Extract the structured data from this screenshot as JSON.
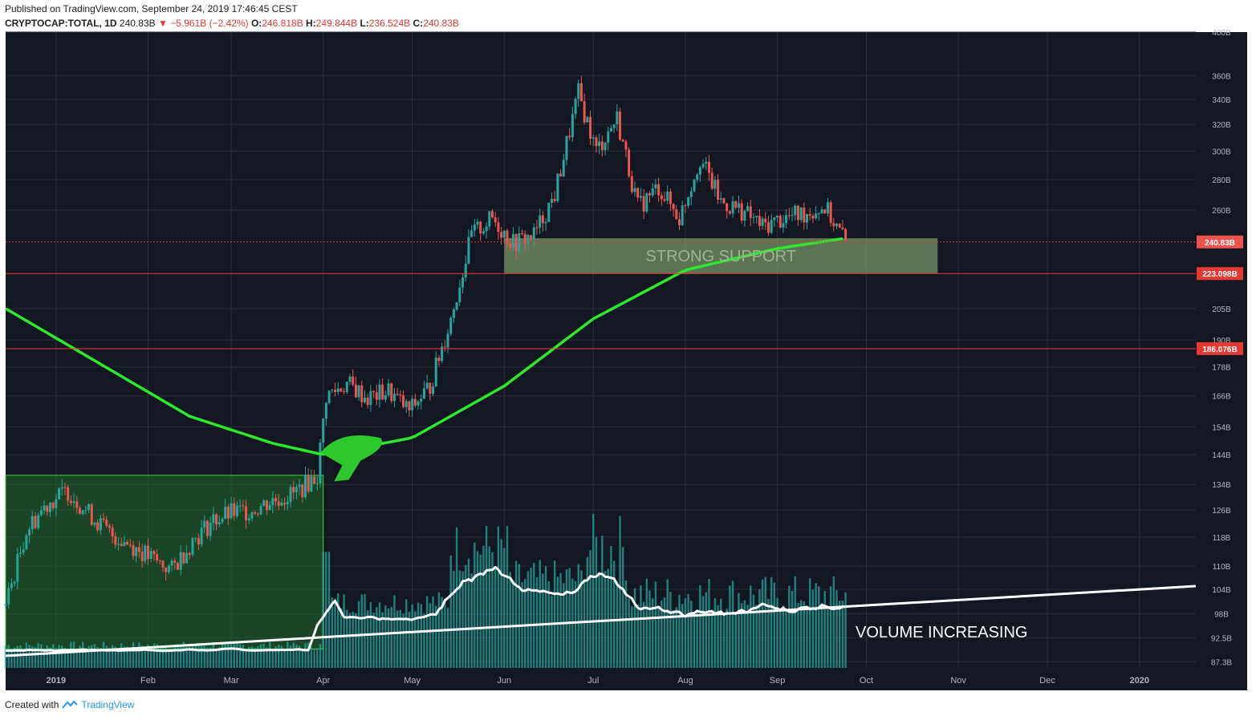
{
  "header": {
    "published": "Published on TradingView.com, September 24, 2019 17:46:45 CEST",
    "symbol": "CRYPTOCAP:TOTAL, 1D",
    "last": "240.83B",
    "change": "−5.961B (−2.42%)",
    "o_label": "O:",
    "o_value": "246.818B",
    "h_label": "H:",
    "h_value": "249.844B",
    "l_label": "L:",
    "l_value": "236.524B",
    "c_label": "C:",
    "c_value": "240.83B"
  },
  "footer": {
    "created": "Created with",
    "brand": "TradingView"
  },
  "colors": {
    "background": "#131722",
    "grid": "#2a2e39",
    "up": "#26a69a",
    "down": "#ef5350",
    "ma": "#2ee82e",
    "support_box": "#7e9c6a",
    "accum_box": "#1f6b2a",
    "hline": "#e53935",
    "volume": "#26a69a",
    "volume_line": "#ffffff"
  },
  "chart_data": {
    "type": "candlestick",
    "title": "",
    "x_ticks": [
      "2019",
      "Feb",
      "Mar",
      "Apr",
      "May",
      "Jun",
      "Jul",
      "Aug",
      "Sep",
      "Oct",
      "Nov",
      "Dec",
      "2020"
    ],
    "y_ticks": [
      "400B",
      "360B",
      "340B",
      "320B",
      "300B",
      "280B",
      "260B",
      "240.83B",
      "223.098B",
      "205B",
      "190B",
      "186.076B",
      "178B",
      "166B",
      "154B",
      "144B",
      "134B",
      "126B",
      "118B",
      "110B",
      "104B",
      "98B",
      "92.5B",
      "87.3B"
    ],
    "log_scale": true,
    "y_range": [
      86,
      400
    ],
    "last_price_label": "240.83B",
    "horizontal_levels": [
      {
        "value": 240.83,
        "label": "240.83B",
        "style": "dotted"
      },
      {
        "value": 223.098,
        "label": "223.098B",
        "style": "solid"
      },
      {
        "value": 186.076,
        "label": "186.076B",
        "style": "solid"
      }
    ],
    "price_path": [
      [
        "2018-12-15",
        100
      ],
      [
        "2018-12-22",
        120
      ],
      [
        "2018-12-29",
        128
      ],
      [
        "2019-01-05",
        132
      ],
      [
        "2019-01-12",
        125
      ],
      [
        "2019-01-19",
        119
      ],
      [
        "2019-01-26",
        116
      ],
      [
        "2019-02-02",
        112
      ],
      [
        "2019-02-09",
        109
      ],
      [
        "2019-02-16",
        117
      ],
      [
        "2019-02-23",
        123
      ],
      [
        "2019-03-01",
        125
      ],
      [
        "2019-03-08",
        126
      ],
      [
        "2019-03-15",
        129
      ],
      [
        "2019-03-22",
        131
      ],
      [
        "2019-03-30",
        137
      ],
      [
        "2019-04-02",
        166
      ],
      [
        "2019-04-09",
        171
      ],
      [
        "2019-04-16",
        165
      ],
      [
        "2019-04-23",
        168
      ],
      [
        "2019-04-30",
        160
      ],
      [
        "2019-05-07",
        170
      ],
      [
        "2019-05-14",
        200
      ],
      [
        "2019-05-21",
        245
      ],
      [
        "2019-05-28",
        255
      ],
      [
        "2019-06-04",
        240
      ],
      [
        "2019-06-11",
        245
      ],
      [
        "2019-06-18",
        270
      ],
      [
        "2019-06-26",
        345
      ],
      [
        "2019-07-02",
        300
      ],
      [
        "2019-07-09",
        325
      ],
      [
        "2019-07-16",
        262
      ],
      [
        "2019-07-23",
        275
      ],
      [
        "2019-07-30",
        255
      ],
      [
        "2019-08-06",
        295
      ],
      [
        "2019-08-13",
        265
      ],
      [
        "2019-08-20",
        260
      ],
      [
        "2019-08-27",
        250
      ],
      [
        "2019-09-03",
        255
      ],
      [
        "2019-09-10",
        258
      ],
      [
        "2019-09-17",
        262
      ],
      [
        "2019-09-24",
        240.83
      ]
    ],
    "ma200": [
      [
        "2018-12-15",
        205
      ],
      [
        "2019-01-15",
        180
      ],
      [
        "2019-02-15",
        158
      ],
      [
        "2019-03-15",
        148
      ],
      [
        "2019-04-01",
        144
      ],
      [
        "2019-05-01",
        150
      ],
      [
        "2019-06-01",
        170
      ],
      [
        "2019-07-01",
        200
      ],
      [
        "2019-08-01",
        225
      ],
      [
        "2019-09-01",
        237
      ],
      [
        "2019-09-24",
        243
      ]
    ],
    "annotations": {
      "support_zone": {
        "low": 223.098,
        "high": 243,
        "from": "2019-06-01",
        "to": "2019-10-25",
        "label": "STRONG SUPPORT"
      },
      "accumulation_zone": {
        "low": 90,
        "high": 137,
        "from": "2018-12-15",
        "to": "2019-04-01"
      },
      "volume_trend_label": "VOLUME INCREASING"
    }
  }
}
